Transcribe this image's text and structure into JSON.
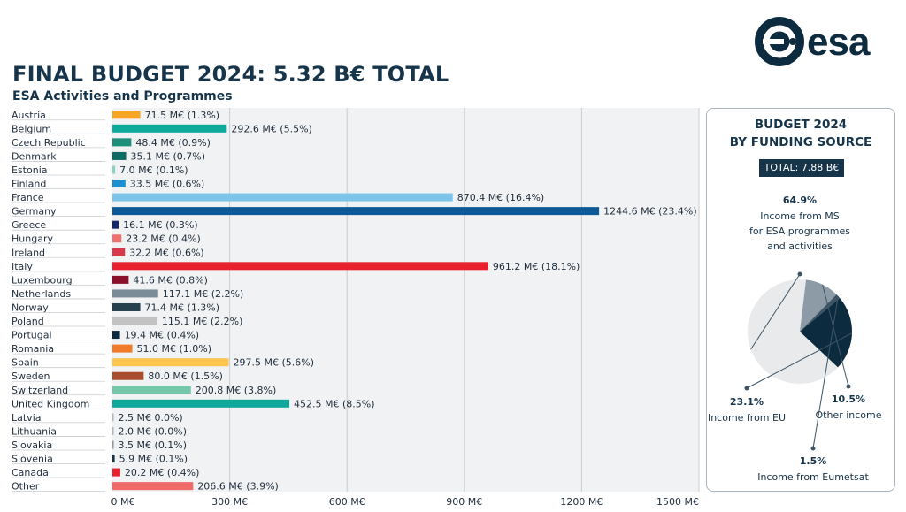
{
  "header": {
    "title": "FINAL BUDGET 2024: 5.32 B€ TOTAL",
    "subtitle": "ESA Activities and Programmes",
    "logo_text": "esa"
  },
  "colors": {
    "navy": "#16344a",
    "grid": "#f1f2f3"
  },
  "chart_data": [
    {
      "type": "bar",
      "orientation": "horizontal",
      "title": "FINAL BUDGET 2024: 5.32 B€ TOTAL",
      "subtitle": "ESA Activities and Programmes",
      "xlim": [
        0,
        1500
      ],
      "x_ticks": [
        0,
        300,
        600,
        900,
        1200,
        1500
      ],
      "x_tick_labels": [
        "0 M€",
        "300 M€",
        "600 M€",
        "900 M€",
        "1200 M€",
        "1500 M€"
      ],
      "grid": true,
      "categories": [
        "Austria",
        "Belgium",
        "Czech Republic",
        "Denmark",
        "Estonia",
        "Finland",
        "France",
        "Germany",
        "Greece",
        "Hungary",
        "Ireland",
        "Italy",
        "Luxembourg",
        "Netherlands",
        "Norway",
        "Poland",
        "Portugal",
        "Romania",
        "Spain",
        "Sweden",
        "Switzerland",
        "United Kingdom",
        "Latvia",
        "Lithuania",
        "Slovakia",
        "Slovenia",
        "Canada",
        "Other"
      ],
      "values": [
        71.5,
        292.6,
        48.4,
        35.1,
        7.0,
        33.5,
        870.4,
        1244.6,
        16.1,
        23.2,
        32.2,
        961.2,
        41.6,
        117.1,
        71.4,
        115.1,
        19.4,
        51.0,
        297.5,
        80.0,
        200.8,
        452.5,
        2.5,
        2.0,
        3.5,
        5.9,
        20.2,
        206.6
      ],
      "labels": [
        "71.5 M€ (1.3%)",
        "292.6 M€ (5.5%)",
        "48.4 M€ (0.9%)",
        "35.1 M€ (0.7%)",
        "7.0 M€ (0.1%)",
        "33.5 M€ (0.6%)",
        "870.4 M€ (16.4%)",
        "1244.6 M€ (23.4%)",
        "16.1 M€ (0.3%)",
        "23.2 M€ (0.4%)",
        "32.2 M€ (0.6%)",
        "961.2 M€ (18.1%)",
        "41.6 M€ (0.8%)",
        "117.1 M€ (2.2%)",
        "71.4 M€ (1.3%)",
        "115.1 M€ (2.2%)",
        "19.4 M€ (0.4%)",
        "51.0 M€ (1.0%)",
        "297.5 M€ (5.6%)",
        "80.0 M€ (1.5%)",
        "200.8 M€ (3.8%)",
        "452.5 M€ (8.5%)",
        "2.5 M€ 0.0%)",
        "2.0 M€ (0.0%)",
        "3.5 M€ (0.1%)",
        "5.9 M€ (0.1%)",
        "20.2 M€ (0.4%)",
        "206.6 M€ (3.9%)"
      ],
      "bar_colors": [
        "#f5a623",
        "#0fa99a",
        "#1a8f7a",
        "#0f6b64",
        "#8ad0c4",
        "#1b8fd0",
        "#7cc4ea",
        "#0d5a9a",
        "#14296a",
        "#f07070",
        "#d63a4a",
        "#e8202e",
        "#8a0f2a",
        "#7b8c99",
        "#26414d",
        "#c2c2c2",
        "#0e2a3d",
        "#f07b2a",
        "#fcc550",
        "#a64e2e",
        "#74c7a8",
        "#10a89a",
        "#aeb8c0",
        "#aeb8c0",
        "#8a99a6",
        "#16344a",
        "#e8202e",
        "#f06a6a"
      ]
    },
    {
      "type": "pie",
      "title": "BUDGET 2024",
      "subtitle": "BY FUNDING SOURCE",
      "total_label": "TOTAL: 7.88 B€",
      "slices": [
        {
          "pct_label": "64.9%",
          "value": 64.9,
          "label_lines": [
            "Income from MS",
            "for ESA programmes",
            "and activities"
          ],
          "color": "#e9eaeb"
        },
        {
          "pct_label": "10.5%",
          "value": 10.5,
          "label_lines": [
            "Other income"
          ],
          "color": "#8d9ba7"
        },
        {
          "pct_label": "1.5%",
          "value": 1.5,
          "label_lines": [
            "Income from Eumetsat"
          ],
          "color": "#3e5566"
        },
        {
          "pct_label": "23.1%",
          "value": 23.1,
          "label_lines": [
            "Income from EU"
          ],
          "color": "#0d2b3e"
        }
      ]
    }
  ]
}
